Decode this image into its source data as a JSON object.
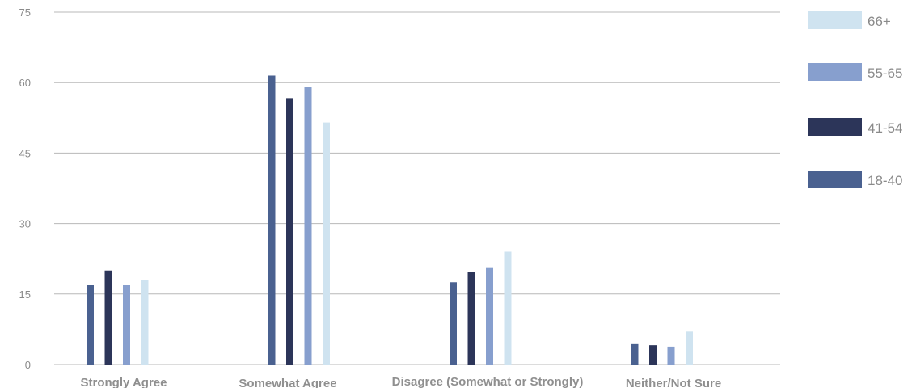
{
  "chart_data": {
    "type": "bar",
    "categories": [
      "Strongly Agree",
      "Somewhat Agree",
      "Disagree (Somewhat or Strongly)",
      "Neither/Not Sure"
    ],
    "series": [
      {
        "name": "18-40",
        "color": "#4a6190",
        "values": [
          17,
          61.5,
          17.5,
          4.5
        ]
      },
      {
        "name": "41-54",
        "color": "#2c3559",
        "values": [
          20,
          56.7,
          19.7,
          4.1
        ]
      },
      {
        "name": "55-65",
        "color": "#879fce",
        "values": [
          17,
          59,
          20.7,
          3.8
        ]
      },
      {
        "name": "66+",
        "color": "#cfe3f0",
        "values": [
          18,
          51.5,
          24,
          7
        ]
      }
    ],
    "yticks": [
      "0",
      "15",
      "30",
      "45",
      "60",
      "75"
    ],
    "ylim": [
      0,
      75
    ],
    "grid": true,
    "legend_position": "right",
    "legend_order": [
      "66+",
      "55-65",
      "41-54",
      "18-40"
    ]
  }
}
